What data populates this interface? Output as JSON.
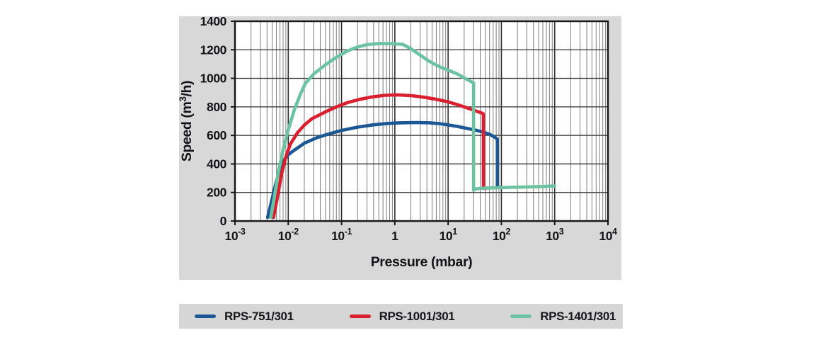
{
  "chart_data": {
    "type": "line",
    "title": "",
    "xlabel": "Pressure (mbar)",
    "ylabel": "Speed (m³/h)",
    "ylabel_parts": {
      "pre": "Speed (m",
      "sup": "3",
      "post": "/h)"
    },
    "x_scale": "log",
    "x_range": [
      0.001,
      10000
    ],
    "y_range": [
      0,
      1400
    ],
    "x_tick_values": [
      0.001,
      0.01,
      0.1,
      1,
      10,
      100,
      1000,
      10000
    ],
    "x_ticks": [
      {
        "text": "10",
        "sup": "-3"
      },
      {
        "text": "10",
        "sup": "-2"
      },
      {
        "text": "10",
        "sup": "-1"
      },
      {
        "text": "1",
        "sup": ""
      },
      {
        "text": "10",
        "sup": "1"
      },
      {
        "text": "10",
        "sup": "2"
      },
      {
        "text": "10",
        "sup": "3"
      },
      {
        "text": "10",
        "sup": "4"
      }
    ],
    "y_ticks": [
      0,
      200,
      400,
      600,
      800,
      1000,
      1200,
      1400
    ],
    "grid": {
      "x_major": true,
      "x_minor": true,
      "y_major": true,
      "y_minor": false
    },
    "legend_position": "bottom",
    "series": [
      {
        "name": "RPS-751/301",
        "color": "#1b5794",
        "points": [
          [
            0.0041,
            25
          ],
          [
            0.0048,
            130
          ],
          [
            0.0058,
            260
          ],
          [
            0.007,
            360
          ],
          [
            0.0085,
            430
          ],
          [
            0.01,
            465
          ],
          [
            0.012,
            487
          ],
          [
            0.02,
            545
          ],
          [
            0.035,
            585
          ],
          [
            0.06,
            612
          ],
          [
            0.1,
            635
          ],
          [
            0.2,
            658
          ],
          [
            0.4,
            674
          ],
          [
            0.7,
            683
          ],
          [
            1.2,
            688
          ],
          [
            2.5,
            690
          ],
          [
            4.5,
            688
          ],
          [
            7,
            682
          ],
          [
            10,
            673
          ],
          [
            15,
            663
          ],
          [
            22,
            650
          ],
          [
            32,
            638
          ],
          [
            45,
            624
          ],
          [
            60,
            608
          ],
          [
            75,
            588
          ],
          [
            84,
            573
          ],
          [
            84,
            244
          ],
          [
            88,
            240
          ]
        ]
      },
      {
        "name": "RPS-1001/301",
        "color": "#da202f",
        "points": [
          [
            0.0053,
            25
          ],
          [
            0.0062,
            160
          ],
          [
            0.0075,
            330
          ],
          [
            0.009,
            450
          ],
          [
            0.011,
            540
          ],
          [
            0.015,
            620
          ],
          [
            0.02,
            672
          ],
          [
            0.028,
            718
          ],
          [
            0.05,
            765
          ],
          [
            0.08,
            800
          ],
          [
            0.13,
            830
          ],
          [
            0.22,
            853
          ],
          [
            0.38,
            870
          ],
          [
            0.65,
            881
          ],
          [
            1.1,
            884
          ],
          [
            2,
            879
          ],
          [
            3.5,
            868
          ],
          [
            6,
            853
          ],
          [
            10,
            835
          ],
          [
            16,
            812
          ],
          [
            24,
            790
          ],
          [
            34,
            770
          ],
          [
            43,
            757
          ],
          [
            46,
            750
          ],
          [
            46,
            230
          ],
          [
            50,
            227
          ]
        ]
      },
      {
        "name": "RPS-1401/301",
        "color": "#6cc3a1",
        "points": [
          [
            0.0047,
            25
          ],
          [
            0.0055,
            170
          ],
          [
            0.0065,
            340
          ],
          [
            0.008,
            500
          ],
          [
            0.01,
            640
          ],
          [
            0.013,
            780
          ],
          [
            0.017,
            890
          ],
          [
            0.021,
            965
          ],
          [
            0.03,
            1030
          ],
          [
            0.05,
            1095
          ],
          [
            0.08,
            1148
          ],
          [
            0.13,
            1192
          ],
          [
            0.2,
            1220
          ],
          [
            0.3,
            1236
          ],
          [
            0.5,
            1243
          ],
          [
            0.85,
            1243
          ],
          [
            1.4,
            1238
          ],
          [
            2,
            1208
          ],
          [
            3,
            1162
          ],
          [
            4.5,
            1118
          ],
          [
            7,
            1080
          ],
          [
            10,
            1058
          ],
          [
            15,
            1030
          ],
          [
            22,
            995
          ],
          [
            30,
            968
          ],
          [
            30,
            216
          ],
          [
            33,
            225
          ],
          [
            40,
            229
          ],
          [
            60,
            232
          ],
          [
            120,
            235
          ],
          [
            300,
            239
          ],
          [
            600,
            242
          ],
          [
            1000,
            246
          ]
        ]
      }
    ],
    "colors": {
      "panel_bg": "#d8d8d8",
      "plot_bg": "#ffffff",
      "grid_minor": "#7d7d7d",
      "grid_major": "#2f2f2f",
      "frame": "#161616",
      "text": "#141418",
      "legend_bg": "#d6d6d6"
    }
  },
  "legend": {
    "items": [
      {
        "label": "RPS-751/301"
      },
      {
        "label": "RPS-1001/301"
      },
      {
        "label": "RPS-1401/301"
      }
    ]
  }
}
